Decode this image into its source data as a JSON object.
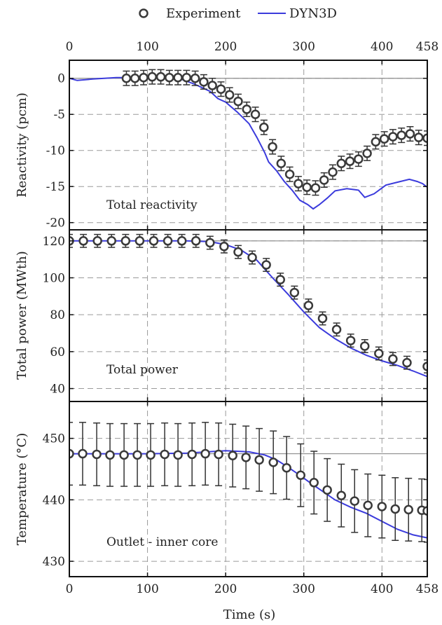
{
  "chart_data": {
    "type": "line",
    "xlabel": "Time (s)",
    "xlim": [
      0,
      458
    ],
    "x_ticks": [
      0,
      100,
      200,
      300,
      400,
      458
    ],
    "x_tick_labels": [
      "0",
      "100",
      "200",
      "300",
      "400",
      "458"
    ],
    "legend": {
      "placement": "top-center",
      "entries": [
        {
          "label": "Experiment",
          "marker": "open-circle",
          "color": "#3a3a3a"
        },
        {
          "label": "DYN3D",
          "marker": "line",
          "color": "#3b3bdc"
        }
      ]
    },
    "grid": "dashed",
    "panels": [
      {
        "key": "reactivity",
        "ylabel": "Reactivity (pcm)",
        "annotation": "Total reactivity",
        "ylim": [
          -21,
          2.5
        ],
        "y_ticks": [
          0,
          -5,
          -10,
          -15,
          -20
        ],
        "y_tick_labels": [
          "0",
          "-5",
          "-10",
          "-15",
          "-20"
        ],
        "reference_line": 0,
        "experiment": {
          "name": "Experiment",
          "x": [
            73,
            84,
            95,
            106,
            117,
            128,
            139,
            150,
            161,
            172,
            183,
            194,
            205,
            216,
            227,
            238,
            249,
            260,
            271,
            282,
            293,
            304,
            315,
            326,
            337,
            348,
            359,
            370,
            381,
            392,
            403,
            414,
            425,
            436,
            447,
            458
          ],
          "y": [
            0,
            0,
            0.1,
            0.2,
            0.2,
            0.1,
            0.1,
            0.1,
            0,
            -0.5,
            -1,
            -1.5,
            -2.3,
            -3.2,
            -4.3,
            -5,
            -6.8,
            -9.5,
            -11.8,
            -13.3,
            -14.6,
            -15.1,
            -15.2,
            -14.1,
            -13.0,
            -11.8,
            -11.5,
            -11.2,
            -10.4,
            -8.8,
            -8.4,
            -8.1,
            -7.9,
            -7.7,
            -8.2,
            -8.3
          ],
          "err": [
            1,
            1,
            1,
            1,
            1,
            1,
            1,
            1,
            1,
            1,
            1,
            1,
            1,
            1,
            1,
            1,
            1,
            1,
            1,
            1,
            1,
            1,
            1,
            1,
            1,
            1,
            1,
            1,
            1,
            1,
            1,
            1,
            1,
            1,
            1,
            1
          ]
        },
        "model": {
          "name": "DYN3D",
          "x": [
            0,
            10,
            30,
            60,
            100,
            140,
            160,
            180,
            190,
            200,
            215,
            230,
            240,
            250,
            255,
            265,
            275,
            285,
            295,
            305,
            312,
            320,
            330,
            340,
            355,
            370,
            378,
            390,
            405,
            420,
            435,
            445,
            452,
            458
          ],
          "y": [
            0,
            -0.3,
            -0.1,
            0.1,
            0.1,
            0,
            -0.8,
            -1.8,
            -2.8,
            -3.3,
            -4.7,
            -6.3,
            -8.2,
            -10.3,
            -11.6,
            -12.8,
            -14.3,
            -15.5,
            -16.9,
            -17.5,
            -18.1,
            -17.5,
            -16.6,
            -15.6,
            -15.3,
            -15.5,
            -16.5,
            -16.0,
            -14.8,
            -14.4,
            -14.0,
            -14.3,
            -14.6,
            -15.1
          ]
        }
      },
      {
        "key": "power",
        "ylabel": "Total power (MWth)",
        "annotation": "Total power",
        "ylim": [
          33,
          126
        ],
        "y_ticks": [
          40,
          60,
          80,
          100,
          120
        ],
        "y_tick_labels": [
          "40",
          "60",
          "80",
          "100",
          "120"
        ],
        "reference_line": 120,
        "experiment": {
          "name": "Experiment",
          "x": [
            0,
            18,
            36,
            54,
            72,
            90,
            108,
            126,
            144,
            162,
            180,
            198,
            216,
            234,
            252,
            270,
            288,
            306,
            324,
            342,
            360,
            378,
            396,
            414,
            432,
            458
          ],
          "y": [
            120,
            120,
            120,
            120,
            120,
            120,
            120,
            120,
            120,
            120,
            119,
            117,
            114,
            111,
            107,
            99,
            92,
            85,
            78,
            72,
            66,
            63,
            59,
            56,
            54,
            52
          ],
          "err": [
            3.5,
            3.5,
            3.5,
            3.5,
            3.5,
            3.5,
            3.5,
            3.5,
            3.5,
            3.5,
            3.5,
            3.5,
            3.5,
            3.5,
            3.5,
            3.5,
            3.5,
            3.5,
            3.5,
            3.5,
            3.5,
            3.5,
            3.5,
            3.5,
            3.5,
            3.5
          ]
        },
        "model": {
          "name": "DYN3D",
          "x": [
            0,
            50,
            100,
            150,
            180,
            200,
            220,
            240,
            260,
            280,
            300,
            320,
            340,
            360,
            380,
            400,
            420,
            440,
            458
          ],
          "y": [
            120,
            120,
            120,
            120,
            119.6,
            118,
            115,
            109.5,
            100,
            91,
            81.5,
            73,
            67,
            62,
            58,
            55,
            52.5,
            49.5,
            46.5
          ]
        }
      },
      {
        "key": "temperature",
        "ylabel": "Temperature (°C)",
        "annotation": "Outlet - inner core",
        "ylim": [
          427.5,
          456
        ],
        "y_ticks": [
          430,
          440,
          450
        ],
        "y_tick_labels": [
          "430",
          "440",
          "450"
        ],
        "reference_line": 447.5,
        "experiment": {
          "name": "Experiment",
          "x": [
            0,
            17,
            35,
            52,
            70,
            87,
            104,
            122,
            139,
            157,
            174,
            191,
            209,
            226,
            243,
            261,
            278,
            296,
            313,
            330,
            348,
            365,
            382,
            400,
            417,
            434,
            451,
            458
          ],
          "y": [
            447.5,
            447.5,
            447.4,
            447.3,
            447.3,
            447.3,
            447.3,
            447.4,
            447.3,
            447.4,
            447.5,
            447.4,
            447.2,
            446.9,
            446.5,
            446.1,
            445.2,
            444.0,
            442.8,
            441.6,
            440.7,
            439.8,
            439.1,
            438.9,
            438.5,
            438.4,
            438.3,
            438.2
          ],
          "err": [
            5.1,
            5.1,
            5.1,
            5.1,
            5.1,
            5.1,
            5.1,
            5.1,
            5.1,
            5.1,
            5.1,
            5.1,
            5.1,
            5.1,
            5.1,
            5.1,
            5.1,
            5.1,
            5.1,
            5.1,
            5.1,
            5.1,
            5.1,
            5.1,
            5.1,
            5.1,
            5.1,
            5.1
          ]
        },
        "model": {
          "name": "DYN3D",
          "x": [
            0,
            50,
            100,
            150,
            200,
            230,
            250,
            265,
            280,
            295,
            310,
            325,
            340,
            360,
            380,
            400,
            420,
            440,
            458
          ],
          "y": [
            447.5,
            447.5,
            447.5,
            447.6,
            448.0,
            447.8,
            447.3,
            446.5,
            445.3,
            444.0,
            442.6,
            441.3,
            440.0,
            438.8,
            437.8,
            436.5,
            435.2,
            434.3,
            433.8
          ]
        }
      }
    ]
  }
}
